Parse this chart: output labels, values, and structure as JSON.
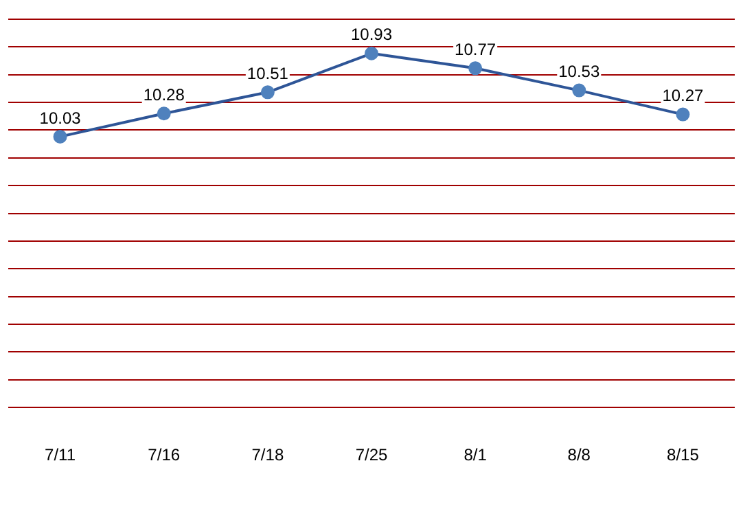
{
  "chart_data": {
    "type": "line",
    "categories": [
      "7/11",
      "7/16",
      "7/18",
      "7/25",
      "8/1",
      "8/8",
      "8/15"
    ],
    "series": [
      {
        "color": "#2e5597",
        "values": [
          10.03,
          10.28,
          10.51,
          10.93,
          10.77,
          10.53,
          10.27
        ]
      }
    ],
    "ylim": [
      7.1,
      11.3
    ],
    "yticks": [
      {
        "value": 7.1,
        "label": null
      },
      {
        "value": 7.4,
        "label": null
      },
      {
        "value": 7.7,
        "label": null
      },
      {
        "value": 8.0,
        "label": null
      },
      {
        "value": 8.3,
        "label": null
      },
      {
        "value": 8.6,
        "label": null
      },
      {
        "value": 8.9,
        "label": null
      },
      {
        "value": 9.2,
        "label": null
      },
      {
        "value": 9.5,
        "label": null
      },
      {
        "value": 9.8,
        "label": null
      },
      {
        "value": 10.1,
        "label": null
      },
      {
        "value": 10.4,
        "label": null
      },
      {
        "value": 10.7,
        "label": null
      },
      {
        "value": 11.0,
        "label": null
      },
      {
        "value": 11.3,
        "label": null
      }
    ],
    "grid": "y",
    "tick_labels": "x",
    "marker": "circle",
    "line_style": "solid",
    "data_labels": true
  }
}
